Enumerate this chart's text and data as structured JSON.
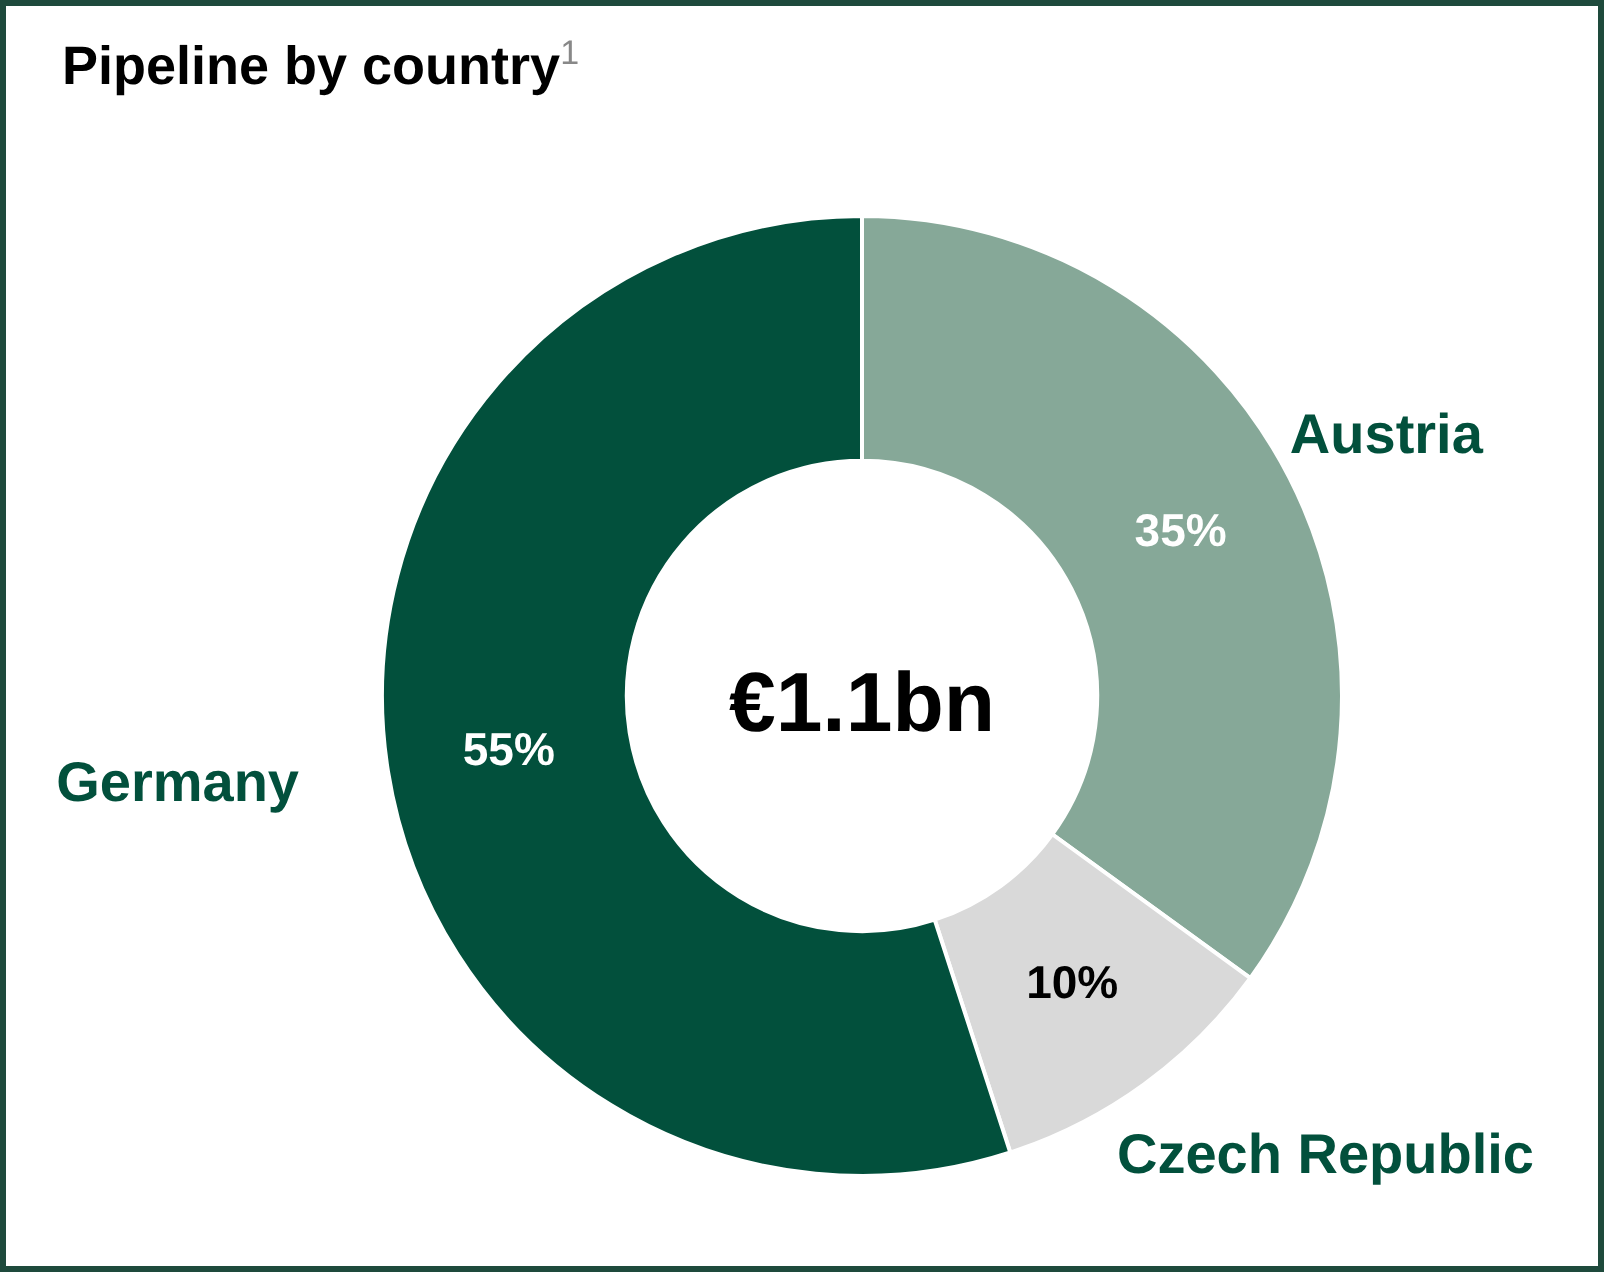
{
  "chart_data": {
    "type": "donut",
    "title": "Pipeline by country$^{1}$",
    "categories": [
      "Austria",
      "Czech Republic",
      "Germany"
    ],
    "values": [
      35,
      10,
      55
    ],
    "colors": [
      "#86a898",
      "#d9d9d9",
      "#02503c"
    ],
    "value_labels": [
      "35%",
      "10%",
      "55%"
    ],
    "annotations": [
      "€1.1bn"
    ],
    "legend": false
  }
}
